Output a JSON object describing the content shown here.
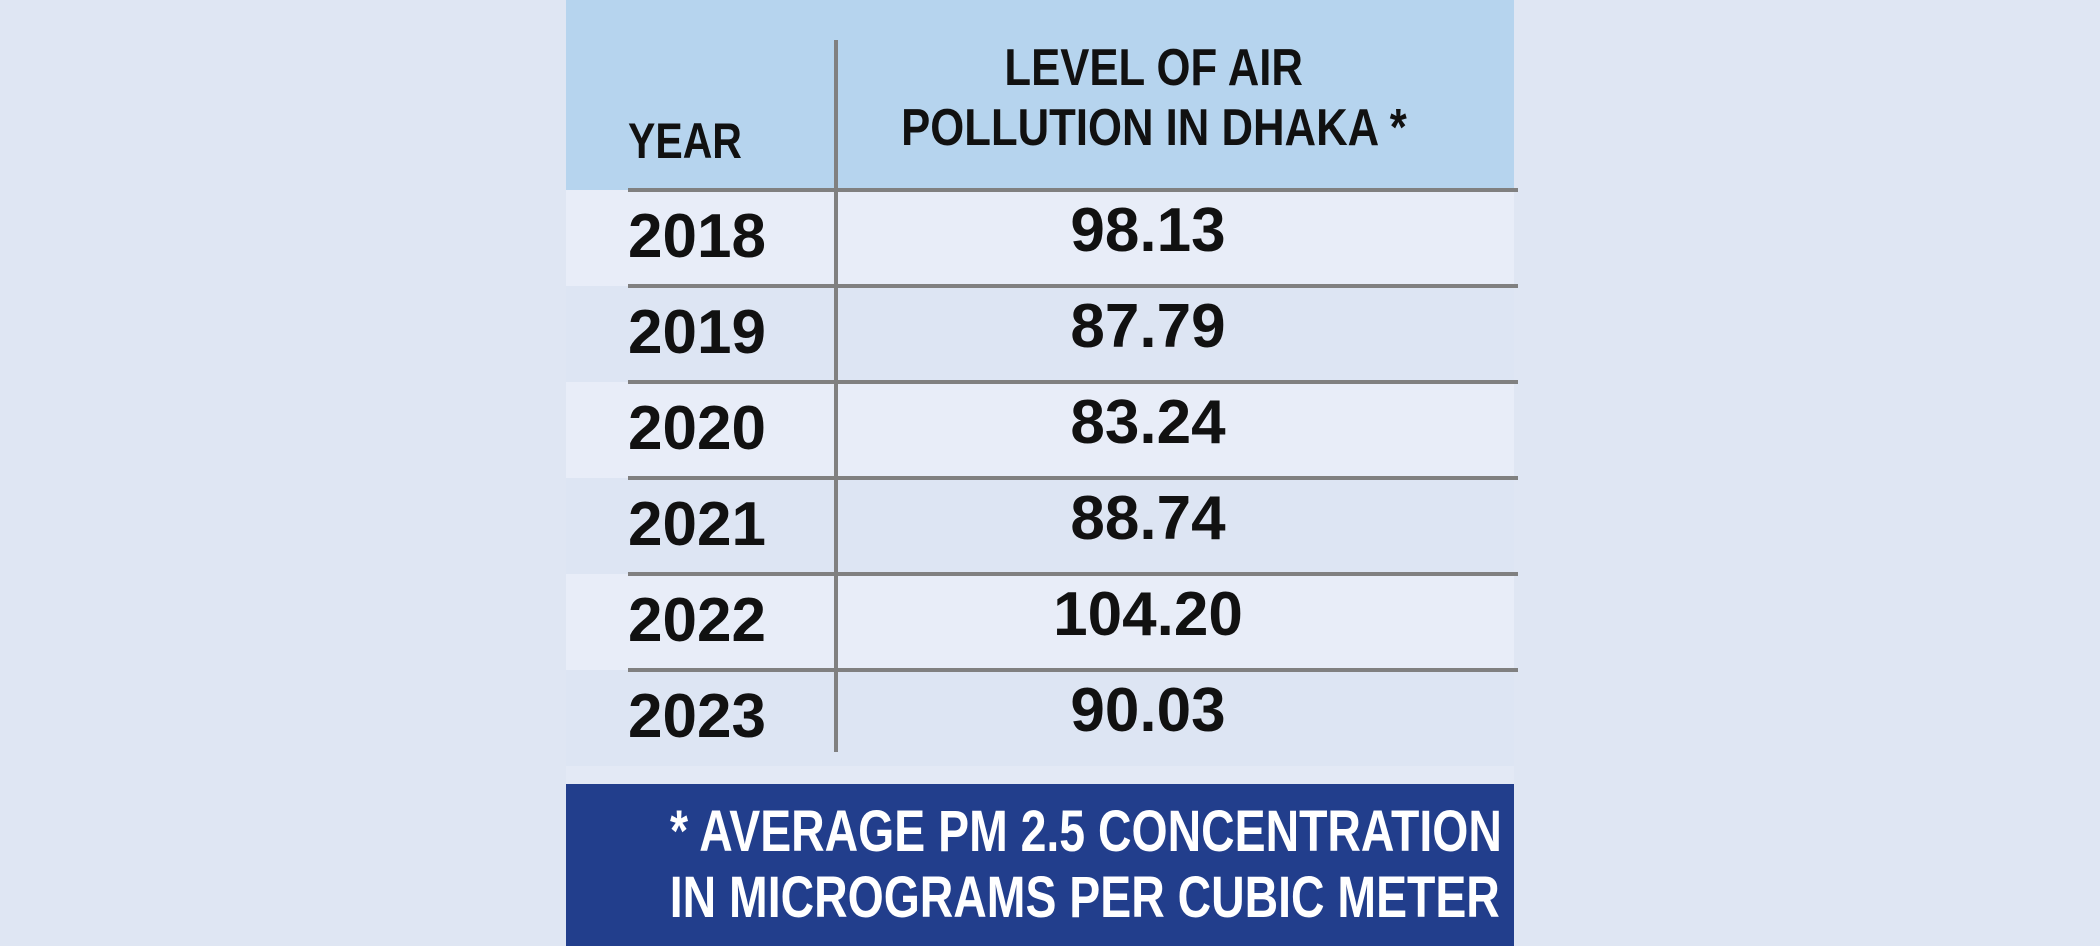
{
  "colors": {
    "page_background": "#dfe6f3",
    "header_background": "#b6d4ee",
    "row_light": "#e8edf8",
    "row_dark": "#dde5f3",
    "rule_color": "#808080",
    "footnote_background": "#223e8c",
    "footnote_text": "#ffffff",
    "text": "#111111"
  },
  "header": {
    "year": "YEAR",
    "level_line1": "LEVEL OF AIR",
    "level_line2": "POLLUTION IN DHAKA *"
  },
  "footnote": {
    "line1": "* AVERAGE PM 2.5 CONCENTRATION",
    "line2": "IN MICROGRAMS PER CUBIC METER"
  },
  "chart_data": {
    "type": "table",
    "columns": [
      "YEAR",
      "LEVEL OF AIR POLLUTION IN DHAKA *"
    ],
    "rows": [
      {
        "year": "2018",
        "value": "98.13"
      },
      {
        "year": "2019",
        "value": "87.79"
      },
      {
        "year": "2020",
        "value": "83.24"
      },
      {
        "year": "2021",
        "value": "88.74"
      },
      {
        "year": "2022",
        "value": "104.20"
      },
      {
        "year": "2023",
        "value": "90.03"
      }
    ]
  }
}
